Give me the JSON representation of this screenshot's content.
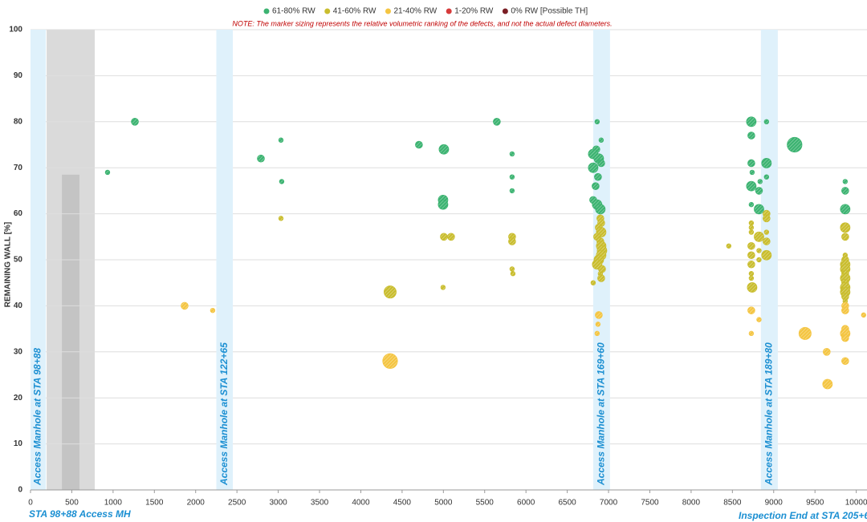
{
  "chart_data": {
    "type": "bubble",
    "note": "NOTE: The marker sizing represents the relative volumetric ranking of the defects, and not the actual defect diameters.",
    "y_label": "REMAINING WALL [%]",
    "xlim": [
      0,
      10130
    ],
    "ylim": [
      0,
      100
    ],
    "xticks": [
      0,
      500,
      1000,
      1500,
      2000,
      2500,
      3000,
      3500,
      4000,
      4500,
      5000,
      5500,
      6000,
      6500,
      7000,
      7500,
      8000,
      8500,
      9000,
      9500,
      10000
    ],
    "yticks": [
      0,
      10,
      20,
      30,
      40,
      50,
      60,
      70,
      80,
      90,
      100
    ],
    "grid": true,
    "legend": "top",
    "bands": [
      {
        "label": "Access Manhole at STA 98+88",
        "x0": 0,
        "x1": 185
      },
      {
        "label": "Access Manhole at STA 122+65",
        "x0": 2250,
        "x1": 2450
      },
      {
        "label": "Access Manhole at STA 169+60",
        "x0": 6814,
        "x1": 7018
      },
      {
        "label": "Access Manhole at STA 189+80",
        "x0": 8845,
        "x1": 9050
      }
    ],
    "shaded": [
      {
        "x0": 195,
        "x1": 778,
        "top": 100,
        "color": "#dadada"
      },
      {
        "x0": 380,
        "x1": 593,
        "top": 68.5,
        "color": "#c4c4c4"
      }
    ],
    "start_label": "STA 98+88 Access MH",
    "end_label": "Inspection End at STA 205+6",
    "series": [
      {
        "name": "61-80% RW",
        "color": "#3cb371",
        "x": [
          933,
          1264,
          2790,
          3033,
          3042,
          4704,
          5006,
          4996,
          4996,
          5647,
          5832,
          5832,
          5832,
          6862,
          6911,
          6852,
          6814,
          6882,
          6814,
          6911,
          6872,
          6843,
          6814,
          6862,
          6901,
          8729,
          8729,
          8729,
          8739,
          8729,
          8729,
          8822,
          8822,
          8913,
          8913,
          8913,
          8835,
          9253,
          9866,
          9866,
          9866
        ],
        "values": [
          69,
          80,
          72,
          76,
          67,
          75,
          74,
          63,
          62,
          80,
          73,
          68,
          65,
          80,
          76,
          74,
          73,
          72,
          70,
          71,
          68,
          66,
          63,
          62,
          61,
          80,
          77,
          71,
          69,
          66,
          62,
          65,
          61,
          80,
          71,
          68,
          67,
          75,
          67,
          65,
          61
        ],
        "sizes": [
          1,
          2,
          2,
          1,
          1,
          2,
          3,
          3,
          3,
          2,
          1,
          1,
          1,
          1,
          1,
          2,
          3,
          3,
          3,
          2,
          2,
          2,
          2,
          3,
          3,
          3,
          2,
          2,
          1,
          3,
          1,
          2,
          3,
          1,
          3,
          1,
          1,
          5,
          1,
          2,
          3
        ]
      },
      {
        "name": "41-60% RW",
        "color": "#c9bd2e",
        "x": [
          3033,
          5006,
          5093,
          4996,
          5832,
          5832,
          5832,
          5842,
          4355,
          6901,
          6911,
          6882,
          6911,
          6862,
          6901,
          6911,
          6921,
          6911,
          6882,
          6862,
          6901,
          6911,
          6814,
          6921,
          8456,
          8729,
          8729,
          8729,
          8822,
          8729,
          8822,
          8729,
          8822,
          8729,
          8729,
          8729,
          8739,
          8913,
          8913,
          8913,
          8913,
          8913,
          9866,
          9866,
          9866,
          9866,
          9866,
          9866,
          9866,
          9866,
          9866,
          9866,
          9866,
          9866,
          9866
        ],
        "values": [
          59,
          55,
          55,
          44,
          55,
          54,
          48,
          47,
          43,
          59,
          58,
          57,
          56,
          55,
          54,
          53,
          52,
          51,
          50,
          49,
          47,
          46,
          45,
          48,
          53,
          58,
          57,
          56,
          55,
          53,
          52,
          51,
          50,
          49,
          47,
          46,
          44,
          60,
          59,
          56,
          54,
          51,
          57,
          55,
          51,
          50,
          49,
          48,
          47,
          46,
          45,
          44,
          43,
          42,
          41
        ],
        "sizes": [
          1,
          2,
          2,
          1,
          2,
          2,
          1,
          1,
          4,
          2,
          2,
          2,
          3,
          2,
          2,
          3,
          3,
          3,
          3,
          3,
          1,
          2,
          1,
          2,
          1,
          1,
          1,
          1,
          3,
          2,
          1,
          2,
          1,
          2,
          1,
          1,
          3,
          2,
          2,
          1,
          2,
          3,
          3,
          2,
          1,
          2,
          3,
          3,
          2,
          3,
          2,
          3,
          3,
          2,
          1
        ]
      },
      {
        "name": "21-40% RW",
        "color": "#f4c542",
        "x": [
          1866,
          2206,
          4355,
          6882,
          6872,
          6862,
          8729,
          8729,
          8822,
          9380,
          9642,
          9652,
          9866,
          9866,
          9866,
          9866,
          9866,
          9866,
          10089
        ],
        "values": [
          40,
          39,
          28,
          38,
          36,
          34,
          39,
          34,
          37,
          34,
          30,
          23,
          40,
          39,
          35,
          34,
          33,
          28,
          38
        ],
        "sizes": [
          2,
          1,
          5,
          2,
          1,
          1,
          2,
          1,
          1,
          4,
          2,
          3,
          2,
          2,
          2,
          3,
          2,
          2,
          1
        ]
      },
      {
        "name": "1-20% RW",
        "color": "#d63a3a",
        "x": [],
        "values": [],
        "sizes": []
      },
      {
        "name": "0% RW [Possible TH]",
        "color": "#7a1e24",
        "x": [],
        "values": [],
        "sizes": []
      }
    ]
  }
}
